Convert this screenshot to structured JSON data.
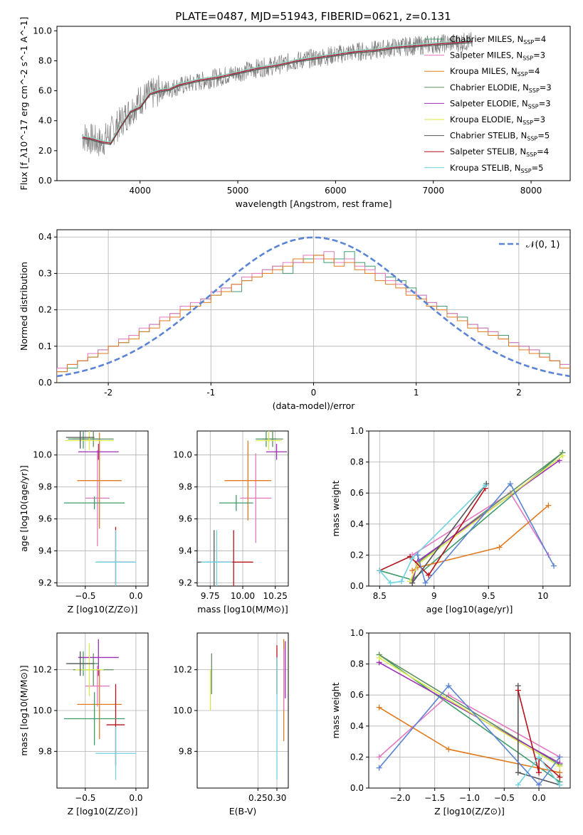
{
  "figure_title": "PLATE=0487, MJD=51943, FIBERID=0621, z=0.131",
  "series_colors": [
    "#3f9b6a",
    "#e377c2",
    "#e07b1f",
    "#5f8f5f",
    "#9b2fb5",
    "#d9e84a",
    "#555555",
    "#b5121b",
    "#6fd3e0"
  ],
  "chart_data": [
    {
      "id": "spectrum",
      "type": "line",
      "title": "PLATE=0487, MJD=51943, FIBERID=0621, z=0.131",
      "xlabel": "wavelength [Angstrom, rest frame]",
      "ylabel": "Flux [f_λ10^-17 erg cm^-2 s^-1 A^-1]",
      "xlim": [
        3150,
        8400
      ],
      "ylim": [
        0,
        10.3
      ],
      "xticks": [
        4000,
        5000,
        6000,
        7000,
        8000
      ],
      "yticks": [
        0,
        2,
        4,
        6,
        8,
        10
      ],
      "grid": false,
      "legend_position": "top-right",
      "data_series": {
        "name": "data",
        "x": [
          3410,
          3600,
          3800,
          4000,
          4200,
          4400,
          4600,
          4800,
          5000,
          5200,
          5400,
          5600,
          5800,
          6000,
          6200,
          6400,
          6600,
          6800,
          7000,
          7200,
          7400
        ],
        "y": [
          3.0,
          2.5,
          3.9,
          5.4,
          6.0,
          6.3,
          6.6,
          6.9,
          7.2,
          7.5,
          7.7,
          8.0,
          8.2,
          8.4,
          8.6,
          8.7,
          8.9,
          9.0,
          9.1,
          9.2,
          9.3
        ]
      },
      "model_x": [
        3410,
        3500,
        3600,
        3700,
        3800,
        3900,
        4000,
        4100,
        4200,
        4300,
        4400,
        4600,
        4800,
        5000,
        5200,
        5400,
        5600,
        5800,
        6000,
        6200,
        6400,
        6600,
        6800,
        7000,
        7200,
        7400
      ],
      "model_y": [
        2.9,
        2.8,
        2.6,
        2.5,
        3.6,
        4.6,
        4.9,
        5.8,
        6.0,
        6.1,
        6.4,
        6.7,
        6.9,
        7.2,
        7.5,
        7.7,
        8.0,
        8.2,
        8.4,
        8.6,
        8.7,
        8.9,
        9.0,
        9.1,
        9.2,
        9.3
      ],
      "series": [
        {
          "name": "Chabrier MILES, N_SSP=4",
          "label_main": "Chabrier MILES, N",
          "label_sub": "SSP",
          "label_tail": "=4",
          "color_index": 0
        },
        {
          "name": "Salpeter MILES, N_SSP=3",
          "label_main": "Salpeter MILES, N",
          "label_sub": "SSP",
          "label_tail": "=3",
          "color_index": 1
        },
        {
          "name": "Kroupa MILES, N_SSP=4",
          "label_main": "Kroupa MILES, N",
          "label_sub": "SSP",
          "label_tail": "=4",
          "color_index": 2
        },
        {
          "name": "Chabrier ELODIE, N_SSP=3",
          "label_main": "Chabrier ELODIE, N",
          "label_sub": "SSP",
          "label_tail": "=3",
          "color_index": 3
        },
        {
          "name": "Salpeter ELODIE, N_SSP=3",
          "label_main": "Salpeter ELODIE, N",
          "label_sub": "SSP",
          "label_tail": "=3",
          "color_index": 4
        },
        {
          "name": "Kroupa ELODIE, N_SSP=3",
          "label_main": "Kroupa ELODIE, N",
          "label_sub": "SSP",
          "label_tail": "=3",
          "color_index": 5
        },
        {
          "name": "Chabrier STELIB, N_SSP=5",
          "label_main": "Chabrier STELIB, N",
          "label_sub": "SSP",
          "label_tail": "=5",
          "color_index": 6
        },
        {
          "name": "Salpeter STELIB, N_SSP=4",
          "label_main": "Salpeter STELIB, N",
          "label_sub": "SSP",
          "label_tail": "=4",
          "color_index": 7
        },
        {
          "name": "Kroupa STELIB, N_SSP=5",
          "label_main": "Kroupa STELIB, N",
          "label_sub": "SSP",
          "label_tail": "=5",
          "color_index": 8
        }
      ]
    },
    {
      "id": "residuals",
      "type": "bar",
      "xlabel": "(data-model)/error",
      "ylabel": "Normed distribution",
      "xlim": [
        -2.5,
        2.5
      ],
      "ylim": [
        0,
        0.42
      ],
      "xticks": [
        -2,
        -1,
        0,
        1,
        2
      ],
      "yticks": [
        0.0,
        0.1,
        0.2,
        0.3,
        0.4
      ],
      "grid": true,
      "legend_position": "top-right",
      "gaussian_label": "𝒩(0, 1)",
      "gaussian_color": "#5b84d4",
      "bin_width": 0.1,
      "bin_start": -2.5,
      "histograms": [
        [
          0.03,
          0.04,
          0.06,
          0.07,
          0.09,
          0.1,
          0.11,
          0.13,
          0.14,
          0.16,
          0.17,
          0.19,
          0.2,
          0.21,
          0.23,
          0.24,
          0.26,
          0.25,
          0.28,
          0.29,
          0.31,
          0.32,
          0.3,
          0.33,
          0.34,
          0.35,
          0.33,
          0.34,
          0.36,
          0.33,
          0.32,
          0.3,
          0.29,
          0.28,
          0.26,
          0.24,
          0.22,
          0.21,
          0.19,
          0.18,
          0.16,
          0.15,
          0.14,
          0.13,
          0.11,
          0.1,
          0.09,
          0.08,
          0.06,
          0.05
        ],
        [
          0.04,
          0.05,
          0.06,
          0.08,
          0.09,
          0.1,
          0.12,
          0.13,
          0.15,
          0.16,
          0.18,
          0.19,
          0.21,
          0.22,
          0.23,
          0.25,
          0.26,
          0.27,
          0.29,
          0.3,
          0.31,
          0.32,
          0.33,
          0.33,
          0.35,
          0.34,
          0.36,
          0.33,
          0.34,
          0.32,
          0.31,
          0.3,
          0.28,
          0.27,
          0.25,
          0.24,
          0.22,
          0.2,
          0.19,
          0.17,
          0.16,
          0.15,
          0.14,
          0.12,
          0.11,
          0.1,
          0.09,
          0.07,
          0.06,
          0.05
        ],
        [
          0.03,
          0.05,
          0.06,
          0.07,
          0.08,
          0.1,
          0.11,
          0.12,
          0.14,
          0.15,
          0.17,
          0.18,
          0.2,
          0.21,
          0.22,
          0.24,
          0.25,
          0.27,
          0.28,
          0.29,
          0.3,
          0.31,
          0.32,
          0.34,
          0.33,
          0.35,
          0.34,
          0.32,
          0.33,
          0.31,
          0.3,
          0.28,
          0.27,
          0.26,
          0.24,
          0.23,
          0.21,
          0.2,
          0.18,
          0.17,
          0.15,
          0.14,
          0.13,
          0.12,
          0.1,
          0.09,
          0.08,
          0.07,
          0.06,
          0.04
        ]
      ],
      "gaussian": {
        "mu": 0,
        "sigma": 1
      }
    },
    {
      "id": "age-vs-Z",
      "type": "scatter",
      "xlabel": "Z [log10(Z/Z⊙)]",
      "ylabel": "age [log10(age/yr)]",
      "xlim": [
        -0.78,
        0.12
      ],
      "ylim": [
        9.18,
        10.15
      ],
      "xticks": [
        -0.5,
        0.0
      ],
      "xtick_labels": [
        "−0.5",
        "0.0"
      ],
      "yticks": [
        9.2,
        9.4,
        9.6,
        9.8,
        10.0
      ],
      "points": [
        {
          "x": -0.52,
          "y": 10.1,
          "xerr": 0.15,
          "yerr": 0.06,
          "c": 0
        },
        {
          "x": -0.38,
          "y": 9.73,
          "xerr": 0.12,
          "yerr": 0.3,
          "c": 1
        },
        {
          "x": -0.36,
          "y": 9.84,
          "xerr": 0.22,
          "yerr": 0.3,
          "c": 2
        },
        {
          "x": -0.42,
          "y": 10.1,
          "xerr": 0.2,
          "yerr": 0.05,
          "c": 3
        },
        {
          "x": -0.37,
          "y": 10.02,
          "xerr": 0.2,
          "yerr": 0.05,
          "c": 4
        },
        {
          "x": -0.46,
          "y": 10.09,
          "xerr": 0.24,
          "yerr": 0.06,
          "c": 5
        },
        {
          "x": -0.55,
          "y": 10.11,
          "xerr": 0.14,
          "yerr": 0.07,
          "c": 6
        },
        {
          "x": -0.2,
          "y": 9.33,
          "xerr": 0.18,
          "yerr": 0.22,
          "c": 7
        },
        {
          "x": -0.2,
          "y": 9.33,
          "xerr": 0.2,
          "yerr": 0.2,
          "c": 8
        },
        {
          "x": -0.41,
          "y": 9.7,
          "xerr": 0.3,
          "yerr": 0.04,
          "c": 0
        }
      ]
    },
    {
      "id": "age-vs-mass",
      "type": "scatter",
      "xlabel": "mass [log10(M/M⊙)]",
      "ylabel": "",
      "xlim": [
        9.65,
        10.35
      ],
      "ylim": [
        9.18,
        10.15
      ],
      "xticks": [
        9.75,
        10.0,
        10.25
      ],
      "xtick_labels": [
        "9.75",
        "10.00",
        "10.25"
      ],
      "yticks": [
        9.2,
        9.4,
        9.6,
        9.8,
        10.0
      ],
      "points": [
        {
          "x": 10.18,
          "y": 10.1,
          "xerr": 0.08,
          "yerr": 0.05,
          "c": 0
        },
        {
          "x": 10.1,
          "y": 9.73,
          "xerr": 0.12,
          "yerr": 0.28,
          "c": 1
        },
        {
          "x": 10.04,
          "y": 9.84,
          "xerr": 0.18,
          "yerr": 0.25,
          "c": 2
        },
        {
          "x": 10.23,
          "y": 10.1,
          "xerr": 0.08,
          "yerr": 0.05,
          "c": 3
        },
        {
          "x": 10.26,
          "y": 10.02,
          "xerr": 0.08,
          "yerr": 0.05,
          "c": 4
        },
        {
          "x": 10.2,
          "y": 10.09,
          "xerr": 0.1,
          "yerr": 0.06,
          "c": 5
        },
        {
          "x": 9.78,
          "y": 9.33,
          "xerr": 0.13,
          "yerr": 0.2,
          "c": 6
        },
        {
          "x": 9.93,
          "y": 9.33,
          "xerr": 0.15,
          "yerr": 0.2,
          "c": 7
        },
        {
          "x": 9.8,
          "y": 9.33,
          "xerr": 0.12,
          "yerr": 0.2,
          "c": 8
        },
        {
          "x": 9.95,
          "y": 9.7,
          "xerr": 0.13,
          "yerr": 0.05,
          "c": 0
        }
      ]
    },
    {
      "id": "weight-vs-age",
      "type": "line",
      "xlabel": "age [log10(age/yr)]",
      "ylabel": "mass weight",
      "xlim": [
        8.4,
        10.25
      ],
      "ylim": [
        0,
        1.0
      ],
      "xticks": [
        8.5,
        9.0,
        9.5,
        10.0
      ],
      "yticks": [
        0.0,
        0.2,
        0.4,
        0.6,
        0.8,
        1.0
      ],
      "grid": true,
      "lines": [
        {
          "c": 0,
          "x": [
            8.5,
            8.8,
            10.18
          ],
          "y": [
            0.1,
            0.04,
            0.86
          ]
        },
        {
          "c": 1,
          "x": [
            8.8,
            9.7,
            10.05
          ],
          "y": [
            0.2,
            0.6,
            0.2
          ]
        },
        {
          "c": 2,
          "x": [
            8.8,
            8.85,
            9.6,
            10.05
          ],
          "y": [
            0.1,
            0.12,
            0.25,
            0.52
          ]
        },
        {
          "c": 3,
          "x": [
            8.8,
            8.85,
            10.18
          ],
          "y": [
            0.04,
            0.15,
            0.86
          ]
        },
        {
          "c": 4,
          "x": [
            8.8,
            8.85,
            10.15
          ],
          "y": [
            0.02,
            0.16,
            0.81
          ]
        },
        {
          "c": 5,
          "x": [
            8.78,
            8.85,
            10.18
          ],
          "y": [
            0.03,
            0.14,
            0.84
          ]
        },
        {
          "c": 6,
          "x": [
            8.8,
            9.48
          ],
          "y": [
            0.02,
            0.66
          ]
        },
        {
          "c": 7,
          "x": [
            8.5,
            8.78,
            8.95,
            9.47
          ],
          "y": [
            0.1,
            0.19,
            0.07,
            0.63
          ]
        },
        {
          "c": 8,
          "x": [
            8.5,
            8.6,
            8.7,
            8.8,
            9.47
          ],
          "y": [
            0.1,
            0.02,
            0.03,
            0.18,
            0.65
          ]
        },
        {
          "c": 0,
          "x": [
            8.85,
            8.92,
            9.7,
            10.1
          ],
          "y": [
            0.2,
            0.02,
            0.66,
            0.13
          ],
          "color": "#5b84d4"
        }
      ]
    },
    {
      "id": "mass-vs-Z",
      "type": "scatter",
      "xlabel": "Z [log10(Z/Z⊙)]",
      "ylabel": "mass [log10(M/M⊙)]",
      "xlim": [
        -0.78,
        0.12
      ],
      "ylim": [
        9.62,
        10.38
      ],
      "xticks": [
        -0.5,
        0.0
      ],
      "xtick_labels": [
        "−0.5",
        "0.0"
      ],
      "yticks": [
        9.8,
        10.0,
        10.2
      ],
      "points": [
        {
          "x": -0.52,
          "y": 10.23,
          "xerr": 0.15,
          "yerr": 0.06,
          "c": 0
        },
        {
          "x": -0.38,
          "y": 10.12,
          "xerr": 0.12,
          "yerr": 0.1,
          "c": 1
        },
        {
          "x": -0.36,
          "y": 10.03,
          "xerr": 0.22,
          "yerr": 0.17,
          "c": 2
        },
        {
          "x": -0.42,
          "y": 10.2,
          "xerr": 0.2,
          "yerr": 0.08,
          "c": 3
        },
        {
          "x": -0.37,
          "y": 10.26,
          "xerr": 0.2,
          "yerr": 0.09,
          "c": 4
        },
        {
          "x": -0.46,
          "y": 10.2,
          "xerr": 0.14,
          "yerr": 0.13,
          "c": 5
        },
        {
          "x": -0.55,
          "y": 10.23,
          "xerr": 0.14,
          "yerr": 0.06,
          "c": 6
        },
        {
          "x": -0.2,
          "y": 9.93,
          "xerr": 0.09,
          "yerr": 0.2,
          "c": 7
        },
        {
          "x": -0.2,
          "y": 9.79,
          "xerr": 0.2,
          "yerr": 0.13,
          "c": 8
        },
        {
          "x": -0.41,
          "y": 9.96,
          "xerr": 0.3,
          "yerr": 0.13,
          "c": 0
        }
      ]
    },
    {
      "id": "mass-vs-ebv",
      "type": "scatter",
      "xlabel": "E(B-V)",
      "ylabel": "",
      "xlim": [
        0.09,
        0.33
      ],
      "ylim": [
        9.62,
        10.38
      ],
      "xticks": [
        0.25,
        0.3
      ],
      "xtick_labels": [
        "0.25",
        "0.30"
      ],
      "yticks": [
        9.8,
        10.0,
        10.2
      ],
      "points": [
        {
          "x": 0.125,
          "y": 10.1,
          "xerr": 0,
          "yerr": 0.1,
          "c": 5
        },
        {
          "x": 0.128,
          "y": 10.18,
          "xerr": 0,
          "yerr": 0.1,
          "c": 3
        },
        {
          "x": 0.3,
          "y": 10.2,
          "xerr": 0,
          "yerr": 0.12,
          "c": 7
        },
        {
          "x": 0.3,
          "y": 9.96,
          "xerr": 0,
          "yerr": 0.3,
          "c": 8
        },
        {
          "x": 0.318,
          "y": 10.1,
          "xerr": 0,
          "yerr": 0.25,
          "c": 2
        },
        {
          "x": 0.318,
          "y": 10.15,
          "xerr": 0,
          "yerr": 0.15,
          "c": 1
        },
        {
          "x": 0.322,
          "y": 10.2,
          "xerr": 0,
          "yerr": 0.14,
          "c": 4
        }
      ]
    },
    {
      "id": "weight-vs-Z",
      "type": "line",
      "xlabel": "Z [log10(Z/Z⊙)]",
      "ylabel": "mass weight",
      "xlim": [
        -2.45,
        0.45
      ],
      "ylim": [
        0,
        1.0
      ],
      "xticks": [
        -2.0,
        -1.5,
        -1.0,
        -0.5,
        0.0
      ],
      "xtick_labels": [
        "−2.0",
        "−1.5",
        "−1.0",
        "−0.5",
        "0.0"
      ],
      "yticks": [
        0.0,
        0.2,
        0.4,
        0.6,
        0.8,
        1.0
      ],
      "grid": true,
      "lines": [
        {
          "c": 0,
          "x": [
            -2.3,
            0.3
          ],
          "y": [
            0.86,
            0.04
          ]
        },
        {
          "c": 1,
          "x": [
            -2.3,
            -1.3,
            0.3
          ],
          "y": [
            0.2,
            0.6,
            0.2
          ]
        },
        {
          "c": 2,
          "x": [
            -2.3,
            -1.3,
            0.3
          ],
          "y": [
            0.52,
            0.25,
            0.1
          ]
        },
        {
          "c": 3,
          "x": [
            -2.3,
            0.3
          ],
          "y": [
            0.86,
            0.15
          ]
        },
        {
          "c": 4,
          "x": [
            -2.3,
            0.3
          ],
          "y": [
            0.81,
            0.16
          ]
        },
        {
          "c": 5,
          "x": [
            -2.3,
            0.3
          ],
          "y": [
            0.84,
            0.14
          ]
        },
        {
          "c": 6,
          "x": [
            -0.3,
            -0.3,
            0.3
          ],
          "y": [
            0.66,
            0.1,
            0.02
          ]
        },
        {
          "c": 7,
          "x": [
            -0.3,
            0.0,
            0.0,
            0.3
          ],
          "y": [
            0.63,
            0.1,
            0.19,
            0.07
          ]
        },
        {
          "c": 8,
          "x": [
            -0.3,
            0.0,
            0.3
          ],
          "y": [
            0.02,
            0.2,
            0.02
          ]
        },
        {
          "c": 0,
          "x": [
            -2.3,
            -1.3,
            0.0,
            0.3
          ],
          "y": [
            0.13,
            0.66,
            0.02,
            0.2
          ],
          "color": "#5b84d4"
        }
      ]
    }
  ]
}
